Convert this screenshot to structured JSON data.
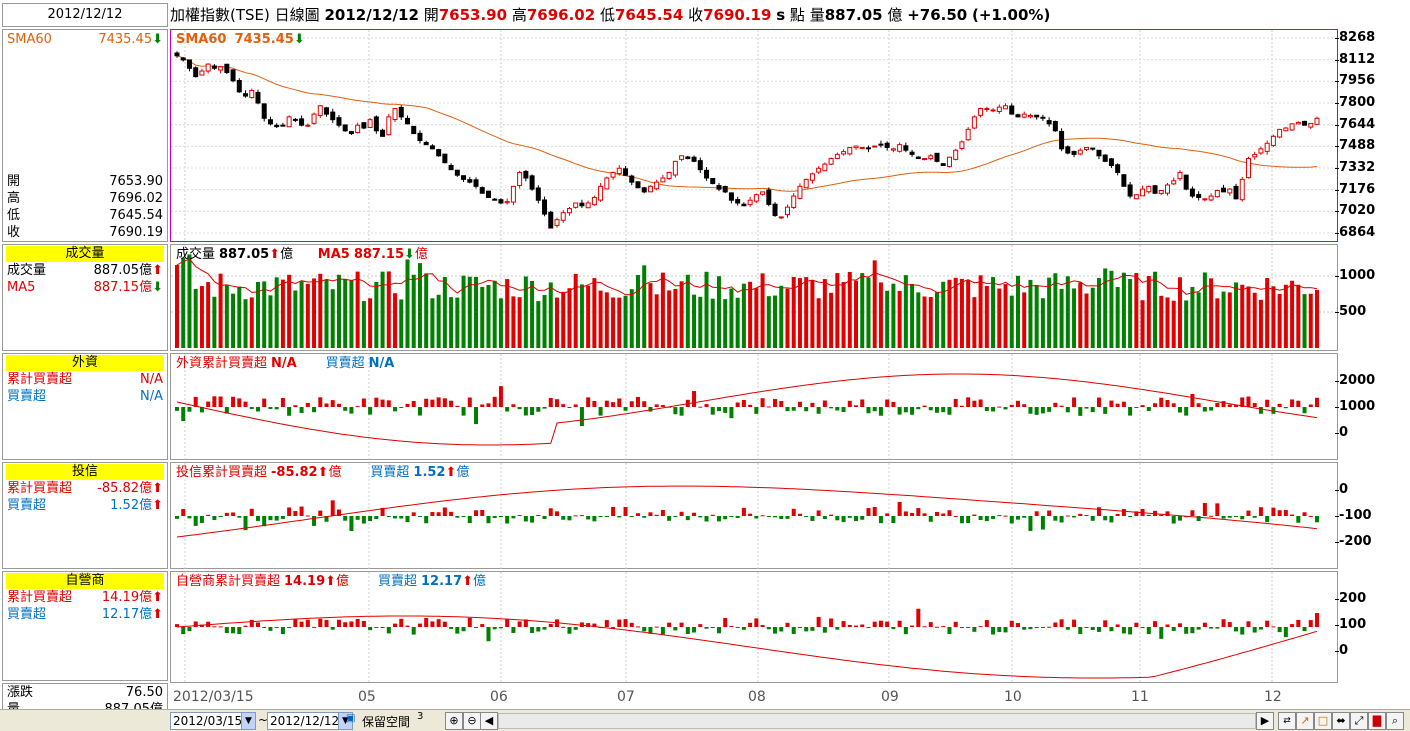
{
  "header": {
    "date": "2012/12/12",
    "name": "加權指數(TSE)",
    "period": "日線圖",
    "date2": "2012/12/12",
    "open_label": "開",
    "open": "7653.90",
    "high_label": "高",
    "high": "7696.02",
    "low_label": "低",
    "low": "7645.54",
    "close_label": "收",
    "close": "7690.19",
    "s_label": "s",
    "pts_label": "點",
    "vol_label": "量",
    "vol": "887.05",
    "vol_unit": "億",
    "change": "+76.50",
    "pct": "(+1.00%)"
  },
  "price": {
    "legend": "SMA60",
    "legend_val": "7435.45",
    "left_label": "SMA60",
    "left_val": "7435.45",
    "ohlc": [
      {
        "k": "開",
        "v": "7653.90"
      },
      {
        "k": "高",
        "v": "7696.02"
      },
      {
        "k": "低",
        "v": "7645.54"
      },
      {
        "k": "收",
        "v": "7690.19"
      }
    ],
    "ticks": [
      "8268",
      "8112",
      "7956",
      "7800",
      "7644",
      "7488",
      "7332",
      "7176",
      "7020",
      "6864"
    ]
  },
  "volume": {
    "tag": "成交量",
    "r1k": "成交量",
    "r1v": "887.05億",
    "r2k": "MA5",
    "r2v": "887.15億",
    "leg1": "成交量",
    "leg1v": "887.05",
    "leg1u": "億",
    "leg2": "MA5",
    "leg2v": "887.15",
    "leg2u": "億",
    "ticks": [
      "1000",
      "500"
    ]
  },
  "foreign": {
    "tag": "外資",
    "r1k": "累計買賣超",
    "r1v": "N/A",
    "r2k": "買賣超",
    "r2v": "N/A",
    "leg1": "外資累計買賣超",
    "leg1v": "N/A",
    "leg2": "買賣超",
    "leg2v": "N/A",
    "ticks": [
      "2000",
      "1000",
      "0"
    ]
  },
  "trust": {
    "tag": "投信",
    "r1k": "累計買賣超",
    "r1v": "-85.82億",
    "r2k": "買賣超",
    "r2v": "1.52億",
    "leg1": "投信累計買賣超",
    "leg1v": "-85.82",
    "leg2": "買賣超",
    "leg2v": "1.52",
    "unit": "億",
    "ticks": [
      "0",
      "-100",
      "-200"
    ]
  },
  "dealer": {
    "tag": "自營商",
    "r1k": "累計買賣超",
    "r1v": "14.19億",
    "r2k": "買賣超",
    "r2v": "12.17億",
    "leg1": "自營商累計買賣超",
    "leg1v": "14.19",
    "leg2": "買賣超",
    "leg2v": "12.17",
    "unit": "億",
    "ticks": [
      "200",
      "100",
      "0"
    ]
  },
  "footer": {
    "chg_label": "漲跌",
    "chg": "76.50",
    "vol_label": "量",
    "vol": "887.05億"
  },
  "xaxis": [
    "2012/03/15",
    "05",
    "06",
    "07",
    "08",
    "09",
    "10",
    "11",
    "12"
  ],
  "toolbar": {
    "from": "2012/03/15",
    "tilde": "~",
    "to": "2012/12/12",
    "keep_label": "保留空間",
    "keep_val": "3"
  },
  "colors": {
    "up": "#e00000",
    "down": "#008000",
    "sma": "#e06010",
    "frame": "#c000c0"
  },
  "chart_data": {
    "type": "candlestick",
    "title": "加權指數(TSE) 日線圖",
    "x_range": [
      "2012/03/15",
      "2012/12/12"
    ],
    "ylim": [
      6864,
      8268
    ],
    "close": [
      8140,
      8110,
      8050,
      7990,
      8030,
      8080,
      8050,
      8060,
      8020,
      7960,
      7880,
      7850,
      7890,
      7800,
      7690,
      7650,
      7630,
      7640,
      7700,
      7680,
      7640,
      7640,
      7720,
      7780,
      7720,
      7680,
      7640,
      7600,
      7580,
      7640,
      7620,
      7680,
      7600,
      7560,
      7700,
      7760,
      7700,
      7650,
      7580,
      7530,
      7500,
      7470,
      7420,
      7370,
      7320,
      7280,
      7250,
      7230,
      7200,
      7150,
      7120,
      7100,
      7080,
      7090,
      7200,
      7300,
      7260,
      7180,
      7100,
      7000,
      6900,
      6960,
      7010,
      7040,
      7080,
      7060,
      7080,
      7120,
      7200,
      7260,
      7300,
      7330,
      7280,
      7230,
      7190,
      7160,
      7200,
      7230,
      7260,
      7300,
      7380,
      7420,
      7400,
      7380,
      7320,
      7260,
      7220,
      7180,
      7160,
      7100,
      7080,
      7060,
      7100,
      7140,
      7160,
      7070,
      6990,
      6980,
      7050,
      7130,
      7200,
      7250,
      7290,
      7330,
      7360,
      7400,
      7430,
      7450,
      7480,
      7490,
      7480,
      7470,
      7490,
      7500,
      7480,
      7470,
      7500,
      7460,
      7430,
      7400,
      7400,
      7420,
      7380,
      7350,
      7410,
      7460,
      7520,
      7610,
      7700,
      7760,
      7760,
      7750,
      7770,
      7780,
      7720,
      7700,
      7720,
      7710,
      7700,
      7690,
      7650,
      7600,
      7470,
      7440,
      7430,
      7460,
      7480,
      7470,
      7420,
      7380,
      7350,
      7300,
      7200,
      7130,
      7140,
      7180,
      7200,
      7150,
      7170,
      7210,
      7240,
      7300,
      7180,
      7130,
      7120,
      7110,
      7130,
      7170,
      7160,
      7180,
      7110,
      7250,
      7400,
      7430,
      7470,
      7510,
      7560,
      7610,
      7620,
      7650,
      7660,
      7640,
      7653,
      7690
    ]
  }
}
